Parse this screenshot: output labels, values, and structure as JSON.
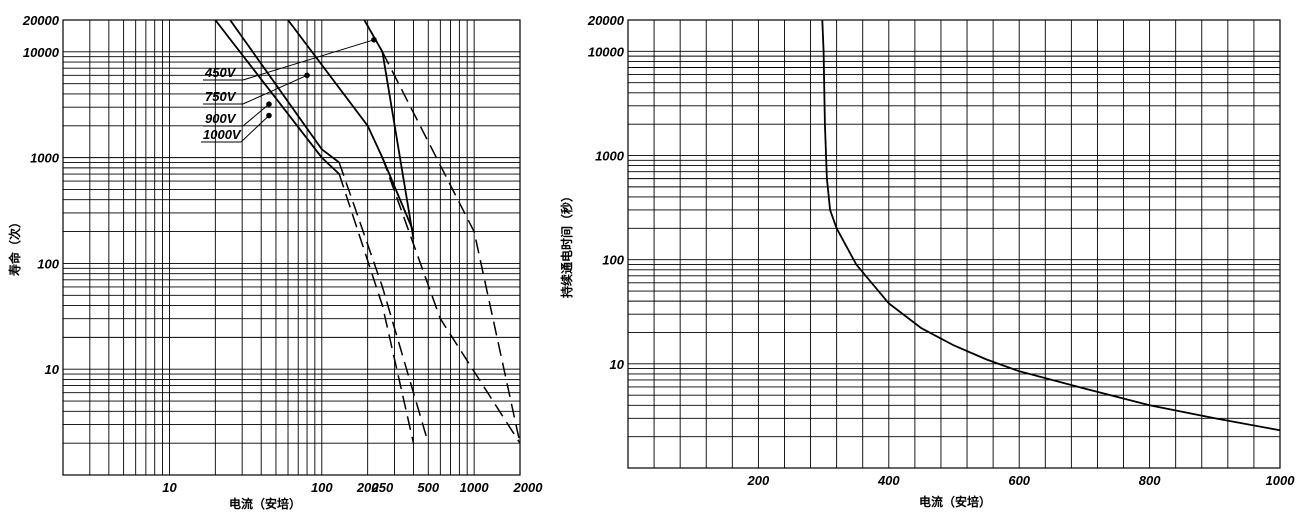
{
  "chart_data": [
    {
      "id": "left",
      "type": "line",
      "xscale": "log",
      "yscale": "log",
      "xlim": [
        2,
        2000
      ],
      "ylim": [
        1,
        20000
      ],
      "xlabel": "电流（安培）",
      "ylabel": "寿命（次）",
      "xticks": [
        {
          "v": 10,
          "label": "10"
        },
        {
          "v": 100,
          "label": "100"
        },
        {
          "v": 200,
          "label": "200"
        },
        {
          "v": 250,
          "label": "250"
        },
        {
          "v": 500,
          "label": "500"
        },
        {
          "v": 1000,
          "label": "1000"
        },
        {
          "v": 2000,
          "label": "2000"
        }
      ],
      "yticks": [
        {
          "v": 10,
          "label": "10"
        },
        {
          "v": 100,
          "label": "100"
        },
        {
          "v": 1000,
          "label": "1000"
        },
        {
          "v": 10000,
          "label": "10000"
        },
        {
          "v": 20000,
          "label": "20000"
        }
      ],
      "series": [
        {
          "name": "450V",
          "solid": [
            [
              190,
              20000
            ],
            [
              250,
              10000
            ],
            [
              400,
              170
            ]
          ],
          "dashed": [
            [
              250,
              10000
            ],
            [
              1000,
              200
            ],
            [
              2000,
              2
            ]
          ],
          "marker": [
            220,
            13000
          ]
        },
        {
          "name": "750V",
          "solid": [
            [
              60,
              20000
            ],
            [
              200,
              2000
            ],
            [
              250,
              1000
            ],
            [
              400,
              200
            ]
          ],
          "dashed": [
            [
              250,
              1000
            ],
            [
              600,
              30
            ],
            [
              2000,
              2
            ]
          ],
          "marker": [
            80,
            6000
          ]
        },
        {
          "name": "900V",
          "solid": [
            [
              25,
              20000
            ],
            [
              100,
              1200
            ],
            [
              130,
              900
            ]
          ],
          "dashed": [
            [
              130,
              900
            ],
            [
              250,
              60
            ],
            [
              500,
              2
            ]
          ],
          "marker": [
            45,
            3200
          ]
        },
        {
          "name": "1000V",
          "solid": [
            [
              20,
              20000
            ],
            [
              100,
              1000
            ],
            [
              130,
              700
            ]
          ],
          "dashed": [
            [
              130,
              700
            ],
            [
              250,
              40
            ],
            [
              400,
              2
            ]
          ],
          "marker": [
            45,
            2500
          ]
        }
      ]
    },
    {
      "id": "right",
      "type": "line",
      "xscale": "linear",
      "yscale": "log",
      "xlim": [
        0,
        1000
      ],
      "ylim": [
        1,
        20000
      ],
      "xlabel": "电流（安培）",
      "ylabel": "持续通电时间（秒）",
      "xticks": [
        {
          "v": 200,
          "label": "200"
        },
        {
          "v": 400,
          "label": "400"
        },
        {
          "v": 600,
          "label": "600"
        },
        {
          "v": 800,
          "label": "800"
        },
        {
          "v": 1000,
          "label": "1000"
        }
      ],
      "yticks": [
        {
          "v": 10,
          "label": "10"
        },
        {
          "v": 100,
          "label": "100"
        },
        {
          "v": 1000,
          "label": "1000"
        },
        {
          "v": 10000,
          "label": "10000"
        },
        {
          "v": 20000,
          "label": "20000"
        }
      ],
      "series": [
        {
          "name": "持续通电时间",
          "points": [
            [
              298,
              20000
            ],
            [
              300,
              10000
            ],
            [
              302,
              2000
            ],
            [
              305,
              600
            ],
            [
              310,
              300
            ],
            [
              320,
              200
            ],
            [
              350,
              90
            ],
            [
              400,
              38
            ],
            [
              450,
              22
            ],
            [
              500,
              15
            ],
            [
              550,
              11
            ],
            [
              600,
              8.5
            ],
            [
              700,
              5.8
            ],
            [
              800,
              4.0
            ],
            [
              900,
              3.0
            ],
            [
              1000,
              2.3
            ]
          ]
        }
      ]
    }
  ]
}
